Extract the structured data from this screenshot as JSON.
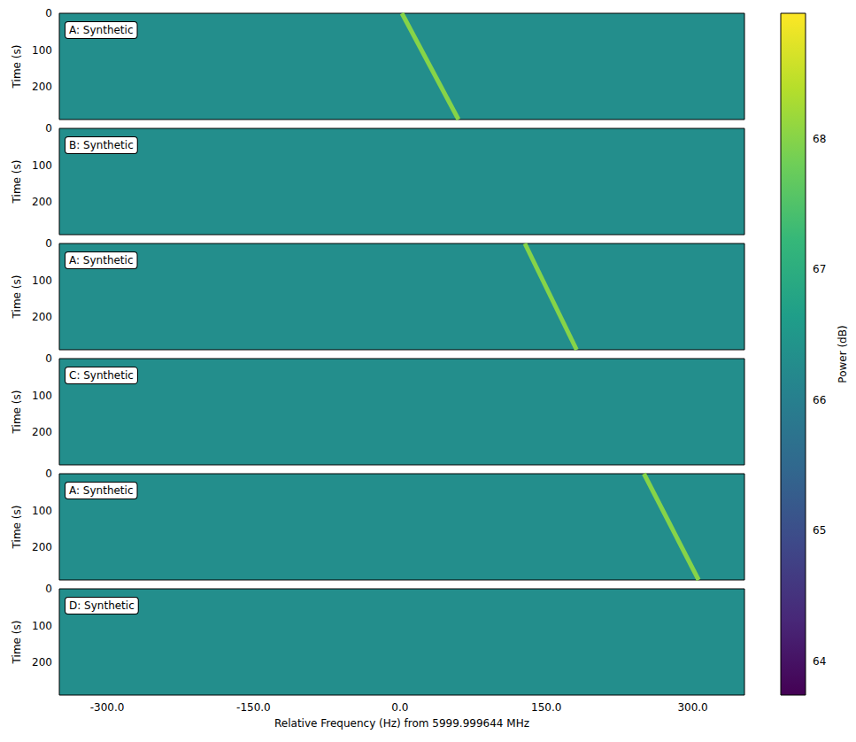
{
  "chart_data": {
    "type": "heatmap",
    "x_label": "Relative Frequency (Hz) from 5999.999644 MHz",
    "y_label": "Time (s)",
    "xlim": [
      -349,
      353
    ],
    "xticks": [
      {
        "value": -300,
        "label": "-300.0"
      },
      {
        "value": -150,
        "label": "-150.0"
      },
      {
        "value": 0,
        "label": "0.0"
      },
      {
        "value": 150,
        "label": "150.0"
      },
      {
        "value": 300,
        "label": "300.0"
      }
    ],
    "ylim": [
      0,
      289
    ],
    "yticks": [
      0,
      100,
      200
    ],
    "colorbar": {
      "label": "Power (dB)",
      "range": [
        63.74,
        68.96
      ],
      "ticks": [
        64,
        65,
        66,
        67,
        68
      ]
    },
    "panels": [
      {
        "label": "A: Synthetic",
        "noise_power": 66.3,
        "track": {
          "time": [
            0,
            289
          ],
          "freq": [
            2,
            60
          ],
          "power": 68.0
        }
      },
      {
        "label": "B: Synthetic",
        "noise_power": 66.3
      },
      {
        "label": "A: Synthetic",
        "noise_power": 66.3,
        "track": {
          "time": [
            0,
            289
          ],
          "freq": [
            128,
            181
          ],
          "power": 68.0
        }
      },
      {
        "label": "C: Synthetic",
        "noise_power": 66.3
      },
      {
        "label": "A: Synthetic",
        "noise_power": 66.3,
        "track": {
          "time": [
            0,
            289
          ],
          "freq": [
            250,
            306
          ],
          "power": 68.0
        }
      },
      {
        "label": "D: Synthetic",
        "noise_power": 66.3
      }
    ]
  }
}
